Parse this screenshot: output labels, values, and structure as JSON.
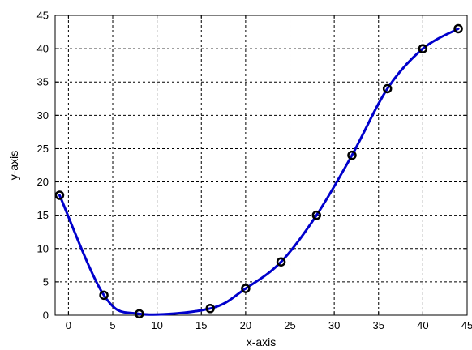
{
  "chart_data": {
    "type": "line",
    "xlabel": "x-axis",
    "ylabel": "y-axis",
    "xlim": [
      -1.5,
      45
    ],
    "ylim": [
      0,
      45
    ],
    "xticks": [
      0,
      5,
      10,
      15,
      20,
      25,
      30,
      35,
      40,
      45
    ],
    "yticks": [
      0,
      5,
      10,
      15,
      20,
      25,
      30,
      35,
      40,
      45
    ],
    "grid": true,
    "series": [
      {
        "color": "#0000cc",
        "marker_color": "#000000",
        "points": [
          {
            "x": -1,
            "y": 18
          },
          {
            "x": 4,
            "y": 3
          },
          {
            "x": 8,
            "y": 0.2
          },
          {
            "x": 16,
            "y": 1
          },
          {
            "x": 20,
            "y": 4
          },
          {
            "x": 24,
            "y": 8
          },
          {
            "x": 28,
            "y": 15
          },
          {
            "x": 32,
            "y": 24
          },
          {
            "x": 36,
            "y": 34
          },
          {
            "x": 40,
            "y": 40
          },
          {
            "x": 44,
            "y": 43
          }
        ]
      }
    ]
  }
}
